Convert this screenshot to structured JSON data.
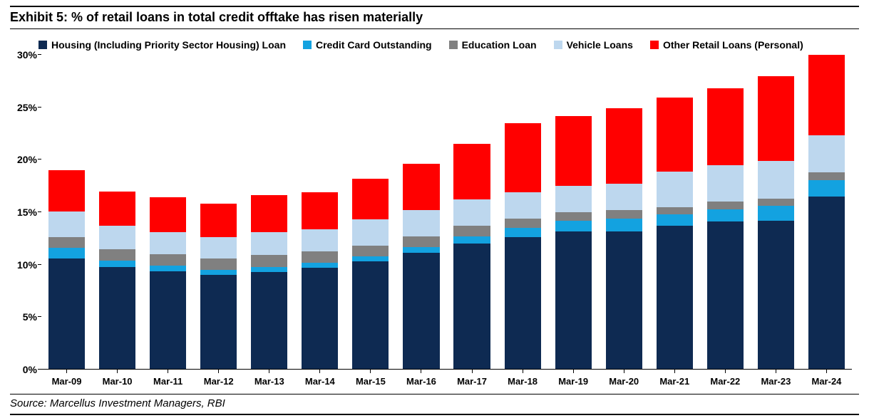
{
  "title": "Exhibit 5: % of retail loans in total credit offtake has risen materially",
  "source": "Source: Marcellus Investment Managers, RBI",
  "chart": {
    "type": "stacked-bar",
    "y_axis": {
      "min": 0,
      "max": 30,
      "ticks": [
        0,
        5,
        10,
        15,
        20,
        25,
        30
      ],
      "suffix": "%",
      "tick_fontsize": 14,
      "draw_tick_marks_only": true
    },
    "x_axis": {
      "tick_fontsize": 13
    },
    "categories": [
      "Mar-09",
      "Mar-10",
      "Mar-11",
      "Mar-12",
      "Mar-13",
      "Mar-14",
      "Mar-15",
      "Mar-16",
      "Mar-17",
      "Mar-18",
      "Mar-19",
      "Mar-20",
      "Mar-21",
      "Mar-22",
      "Mar-23",
      "Mar-24"
    ],
    "series": [
      {
        "name": "Housing (Including Priority Sector Housing) Loan",
        "color": "#0e2a52",
        "values": [
          10.6,
          9.8,
          9.4,
          9.0,
          9.3,
          9.7,
          10.3,
          11.1,
          12.0,
          12.6,
          13.2,
          13.2,
          13.7,
          14.1,
          14.2,
          16.6
        ]
      },
      {
        "name": "Credit Card Outstanding",
        "color": "#13a2e0",
        "values": [
          1.0,
          0.6,
          0.5,
          0.5,
          0.5,
          0.5,
          0.5,
          0.6,
          0.7,
          0.9,
          1.0,
          1.2,
          1.1,
          1.2,
          1.4,
          1.6
        ]
      },
      {
        "name": "Education Loan",
        "color": "#808080",
        "values": [
          1.0,
          1.1,
          1.1,
          1.1,
          1.1,
          1.1,
          1.0,
          1.0,
          1.0,
          0.9,
          0.8,
          0.8,
          0.7,
          0.7,
          0.7,
          0.7
        ]
      },
      {
        "name": "Vehicle Loans",
        "color": "#bdd7ee",
        "values": [
          2.5,
          2.2,
          2.1,
          2.0,
          2.2,
          2.1,
          2.5,
          2.5,
          2.5,
          2.5,
          2.5,
          2.5,
          3.4,
          3.5,
          3.6,
          3.6
        ]
      },
      {
        "name": "Other Retail Loans (Personal)",
        "color": "#ff0000",
        "values": [
          3.9,
          3.3,
          3.3,
          3.2,
          3.5,
          3.5,
          3.9,
          4.4,
          5.3,
          6.6,
          6.7,
          7.2,
          7.0,
          7.3,
          8.1,
          7.7
        ]
      }
    ],
    "legend": {
      "position": "top",
      "fontsize": 14,
      "marker_size": 12
    },
    "bar_width_ratio": 0.72,
    "background_color": "#ffffff"
  }
}
